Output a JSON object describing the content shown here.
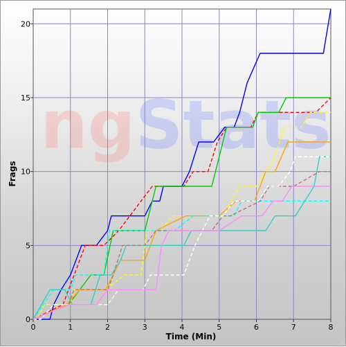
{
  "chart_data": {
    "type": "line",
    "xlabel": "Time (Min)",
    "ylabel": "Frags",
    "xlim": [
      0,
      8
    ],
    "ylim": [
      0,
      21
    ],
    "x_ticks": [
      0,
      1,
      2,
      3,
      4,
      5,
      6,
      7,
      8
    ],
    "y_ticks": [
      0,
      5,
      10,
      15,
      20
    ],
    "grid": true,
    "watermark": "ngStats",
    "series": [
      {
        "color": "#0000ff",
        "dashed": false,
        "points": [
          [
            0,
            0
          ],
          [
            0.45,
            0
          ],
          [
            0.55,
            1
          ],
          [
            0.75,
            2
          ],
          [
            1.0,
            3
          ],
          [
            1.3,
            5
          ],
          [
            1.7,
            5
          ],
          [
            2.0,
            6
          ],
          [
            2.1,
            7
          ],
          [
            3.0,
            7
          ],
          [
            3.2,
            8
          ],
          [
            3.4,
            8
          ],
          [
            3.5,
            9
          ],
          [
            4.0,
            9
          ],
          [
            4.2,
            10
          ],
          [
            4.45,
            12
          ],
          [
            4.85,
            12
          ],
          [
            5.15,
            13
          ],
          [
            5.4,
            13
          ],
          [
            5.55,
            14
          ],
          [
            5.75,
            16
          ],
          [
            6.1,
            18
          ],
          [
            7.8,
            18
          ],
          [
            8.0,
            21
          ]
        ]
      },
      {
        "color": "#ff0000",
        "dashed": true,
        "points": [
          [
            0,
            0
          ],
          [
            0.8,
            1
          ],
          [
            1.4,
            5
          ],
          [
            1.9,
            5
          ],
          [
            2.3,
            6
          ],
          [
            3.2,
            9
          ],
          [
            4.05,
            9
          ],
          [
            4.3,
            10
          ],
          [
            4.7,
            10
          ],
          [
            4.95,
            12
          ],
          [
            5.2,
            13
          ],
          [
            5.85,
            13
          ],
          [
            6.05,
            14
          ],
          [
            7.6,
            14
          ],
          [
            8.0,
            15
          ]
        ]
      },
      {
        "color": "#00cc00",
        "dashed": false,
        "points": [
          [
            0,
            0
          ],
          [
            0.95,
            1
          ],
          [
            1.55,
            3
          ],
          [
            1.9,
            3
          ],
          [
            2.15,
            6
          ],
          [
            3.0,
            6
          ],
          [
            3.3,
            9
          ],
          [
            4.0,
            9
          ],
          [
            4.25,
            9
          ],
          [
            4.8,
            9
          ],
          [
            5.2,
            13
          ],
          [
            5.9,
            13
          ],
          [
            6.05,
            14
          ],
          [
            6.6,
            14
          ],
          [
            6.8,
            15
          ],
          [
            8.0,
            15
          ]
        ]
      },
      {
        "color": "#ffff00",
        "dashed": true,
        "points": [
          [
            0,
            0
          ],
          [
            0.1,
            0
          ],
          [
            0.3,
            1
          ],
          [
            1.0,
            1
          ],
          [
            1.1,
            2
          ],
          [
            1.95,
            2
          ],
          [
            2.45,
            3
          ],
          [
            2.9,
            3
          ],
          [
            3.05,
            6
          ],
          [
            3.4,
            6
          ],
          [
            3.75,
            7
          ],
          [
            5.1,
            7
          ],
          [
            5.55,
            9
          ],
          [
            6.0,
            9
          ],
          [
            6.5,
            11
          ],
          [
            6.75,
            13
          ],
          [
            7.2,
            13
          ],
          [
            7.45,
            14
          ],
          [
            8.0,
            14
          ]
        ]
      },
      {
        "color": "#ffa500",
        "dashed": false,
        "points": [
          [
            0,
            0
          ],
          [
            0.9,
            1
          ],
          [
            1.25,
            2
          ],
          [
            1.95,
            2
          ],
          [
            2.35,
            4
          ],
          [
            3.0,
            4
          ],
          [
            3.3,
            6
          ],
          [
            4.1,
            7
          ],
          [
            5.0,
            7
          ],
          [
            5.45,
            8
          ],
          [
            5.95,
            8
          ],
          [
            6.25,
            10
          ],
          [
            6.5,
            10
          ],
          [
            6.85,
            12
          ],
          [
            8.0,
            12
          ]
        ]
      },
      {
        "color": "#00ffff",
        "dashed": true,
        "points": [
          [
            0,
            0
          ],
          [
            0.55,
            2
          ],
          [
            1.0,
            2
          ],
          [
            1.15,
            3
          ],
          [
            1.9,
            3
          ],
          [
            2.05,
            6
          ],
          [
            3.8,
            6
          ],
          [
            4.3,
            7
          ],
          [
            5.4,
            7
          ],
          [
            5.6,
            8
          ],
          [
            8.0,
            8
          ]
        ]
      },
      {
        "color": "#30d0c0",
        "dashed": false,
        "points": [
          [
            0,
            0
          ],
          [
            0.45,
            2
          ],
          [
            0.85,
            2
          ],
          [
            1.05,
            1
          ],
          [
            1.55,
            1
          ],
          [
            1.8,
            3
          ],
          [
            2.1,
            3
          ],
          [
            2.35,
            4
          ],
          [
            2.5,
            5
          ],
          [
            3.0,
            5
          ],
          [
            3.15,
            5
          ],
          [
            4.05,
            5
          ],
          [
            4.25,
            6
          ],
          [
            5.7,
            6
          ],
          [
            6.25,
            6
          ],
          [
            6.5,
            7
          ],
          [
            7.05,
            7
          ],
          [
            7.55,
            9
          ],
          [
            7.7,
            11
          ],
          [
            8.0,
            11
          ]
        ]
      },
      {
        "color": "#c07070",
        "dashed": true,
        "points": [
          [
            0,
            0
          ],
          [
            0.95,
            1
          ],
          [
            1.1,
            2
          ],
          [
            2.0,
            2
          ],
          [
            2.15,
            3
          ],
          [
            2.4,
            5
          ],
          [
            3.0,
            5
          ],
          [
            3.3,
            6
          ],
          [
            4.8,
            6
          ],
          [
            5.1,
            7
          ],
          [
            5.3,
            7
          ],
          [
            6.1,
            8
          ],
          [
            6.35,
            9
          ],
          [
            6.7,
            9
          ],
          [
            7.0,
            9
          ],
          [
            7.7,
            10
          ],
          [
            8.0,
            10
          ]
        ]
      },
      {
        "color": "#ffffff",
        "dashed": true,
        "points": [
          [
            0,
            0
          ],
          [
            0.2,
            0
          ],
          [
            0.55,
            1
          ],
          [
            0.95,
            1
          ],
          [
            1.2,
            1
          ],
          [
            2.0,
            1
          ],
          [
            2.3,
            2
          ],
          [
            2.95,
            2
          ],
          [
            3.15,
            3
          ],
          [
            4.05,
            3
          ],
          [
            4.35,
            5
          ],
          [
            4.75,
            7
          ],
          [
            5.1,
            7
          ],
          [
            5.4,
            8
          ],
          [
            6.05,
            8
          ],
          [
            6.3,
            9
          ],
          [
            6.6,
            9
          ],
          [
            6.9,
            10
          ],
          [
            7.05,
            11
          ],
          [
            8.0,
            11
          ]
        ]
      },
      {
        "color": "#ff88ff",
        "dashed": false,
        "points": [
          [
            0,
            0
          ],
          [
            0.95,
            1
          ],
          [
            1.7,
            1
          ],
          [
            2.0,
            2
          ],
          [
            3.3,
            2
          ],
          [
            3.45,
            5
          ],
          [
            3.65,
            6
          ],
          [
            5.0,
            6
          ],
          [
            5.6,
            7
          ],
          [
            6.15,
            7
          ],
          [
            6.45,
            8
          ],
          [
            6.7,
            8
          ],
          [
            6.95,
            9
          ],
          [
            8.0,
            9
          ]
        ]
      }
    ]
  }
}
